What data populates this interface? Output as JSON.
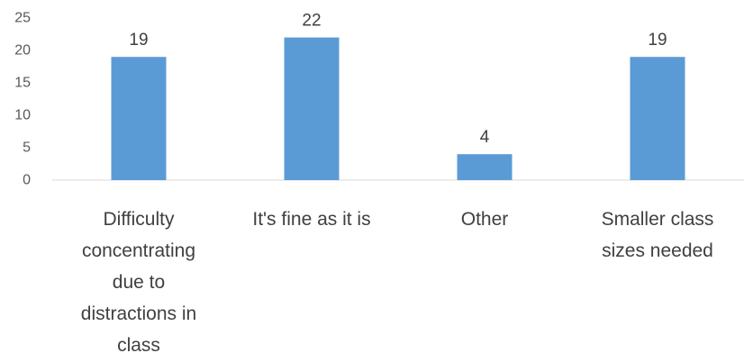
{
  "chart_data": {
    "type": "bar",
    "title": "",
    "xlabel": "",
    "ylabel": "",
    "categories": [
      "Difficulty concentrating due to distractions in class",
      "It's fine as it is",
      "Other",
      "Smaller class sizes needed"
    ],
    "category_lines": [
      [
        "Difficulty",
        "concentrating",
        "due to",
        "distractions in",
        "class"
      ],
      [
        "It's fine as it is"
      ],
      [
        "Other"
      ],
      [
        "Smaller class",
        "sizes needed"
      ]
    ],
    "values": [
      19,
      22,
      4,
      19
    ],
    "ylim": [
      0,
      25
    ],
    "yticks": [
      0,
      5,
      10,
      15,
      20,
      25
    ],
    "grid": false,
    "legend": "none",
    "bar_color": "#5B9BD5",
    "axis_color": "#D9D9D9",
    "data_labels": true
  }
}
